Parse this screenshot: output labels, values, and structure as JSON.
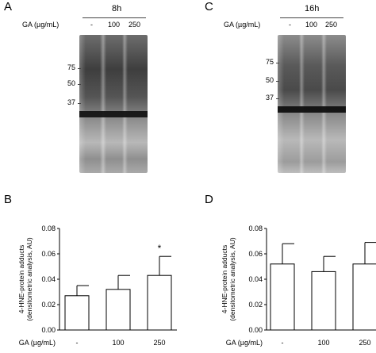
{
  "blots": [
    {
      "panel": "A",
      "time_label": "8h",
      "ga_label": "GA (µg/mL)",
      "lanes": [
        "-",
        "100",
        "250"
      ],
      "markers": [
        "75",
        "50",
        "37"
      ]
    },
    {
      "panel": "C",
      "time_label": "16h",
      "ga_label": "GA (µg/mL)",
      "lanes": [
        "-",
        "100",
        "250"
      ],
      "markers": [
        "75",
        "50",
        "37"
      ]
    }
  ],
  "chart_data": [
    {
      "panel": "B",
      "type": "bar",
      "categories": [
        "-",
        "100",
        "250"
      ],
      "values": [
        0.027,
        0.032,
        0.043
      ],
      "errors": [
        0.008,
        0.011,
        0.015
      ],
      "significance": [
        "",
        "",
        "*"
      ],
      "xlabel": "GA (µg/mL)",
      "ylabel": "4-HNE-protein adducts (densitometric analysis, AU)",
      "ylim": [
        0,
        0.08
      ],
      "yticks": [
        "0.00",
        "0.02",
        "0.04",
        "0.06",
        "0.08"
      ],
      "grid": false
    },
    {
      "panel": "D",
      "type": "bar",
      "categories": [
        "-",
        "100",
        "250"
      ],
      "values": [
        0.052,
        0.046,
        0.052
      ],
      "errors": [
        0.016,
        0.012,
        0.017
      ],
      "significance": [
        "",
        "",
        ""
      ],
      "xlabel": "GA (µg/mL)",
      "ylabel": "4-HNE-protein adducts (densitometric analysis, AU)",
      "ylim": [
        0,
        0.08
      ],
      "yticks": [
        "0.00",
        "0.02",
        "0.04",
        "0.06",
        "0.08"
      ],
      "grid": false
    }
  ]
}
